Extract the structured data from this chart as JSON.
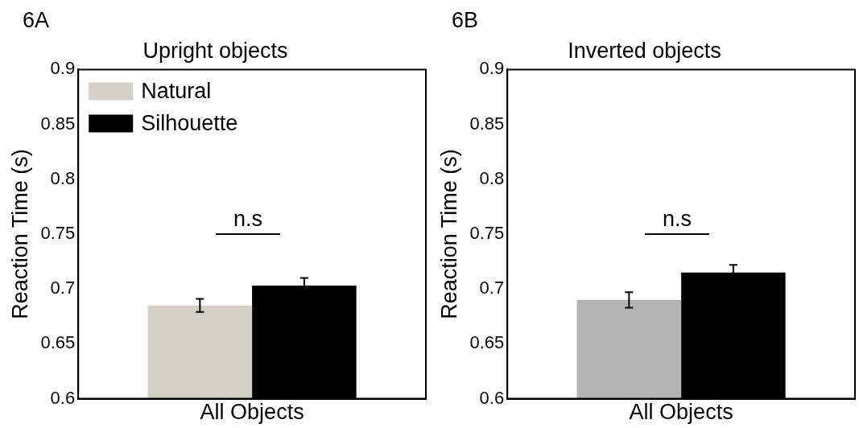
{
  "chart_data": [
    {
      "type": "bar",
      "title": "Upright objects",
      "ylabel": "Reaction Time (s)",
      "annotations": [
        "6A",
        "n.s"
      ],
      "categories": [
        "All Objects"
      ],
      "series": [
        {
          "name": "Natural",
          "color": "#d4d0c8",
          "values": [
            0.685
          ],
          "errors": [
            0.006
          ]
        },
        {
          "name": "Silhouette",
          "color": "#000000",
          "values": [
            0.703
          ],
          "errors": [
            0.007
          ]
        }
      ],
      "ylim": [
        0.6,
        0.9
      ],
      "yticks": [
        0.6,
        0.65,
        0.7,
        0.75,
        0.8,
        0.85,
        0.9
      ],
      "grid": false,
      "legend": "top left"
    },
    {
      "type": "bar",
      "title": "Inverted objects",
      "ylabel": "Reaction Time (s)",
      "annotations": [
        "6B",
        "n.s"
      ],
      "categories": [
        "All Objects"
      ],
      "series": [
        {
          "color": "#b3b3b3",
          "values": [
            0.69
          ],
          "errors": [
            0.007
          ]
        },
        {
          "color": "#000000",
          "values": [
            0.715
          ],
          "errors": [
            0.007
          ]
        }
      ],
      "ylim": [
        0.6,
        0.9
      ],
      "yticks": [
        0.6,
        0.65,
        0.7,
        0.75,
        0.8,
        0.85,
        0.9
      ],
      "grid": false,
      "legend": false
    }
  ]
}
